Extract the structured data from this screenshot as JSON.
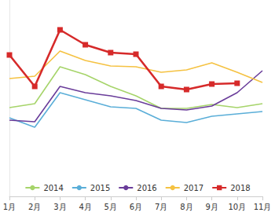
{
  "chart_data": {
    "type": "line",
    "categories": [
      "1月",
      "2月",
      "3月",
      "4月",
      "5月",
      "6月",
      "7月",
      "8月",
      "9月",
      "10月",
      "11月"
    ],
    "series": [
      {
        "name": "2014",
        "color": "#a6d46a",
        "marker": "none",
        "line_style": "solid",
        "values": [
          113,
          118,
          165,
          155,
          140,
          128,
          112,
          112,
          117,
          113,
          118
        ]
      },
      {
        "name": "2015",
        "color": "#5aaed8",
        "marker": "none",
        "line_style": "solid",
        "values": [
          100,
          88,
          132,
          123,
          114,
          112,
          97,
          94,
          102,
          105,
          108
        ]
      },
      {
        "name": "2016",
        "color": "#6a3d9a",
        "marker": "none",
        "line_style": "solid",
        "values": [
          97,
          95,
          140,
          132,
          128,
          122,
          112,
          110,
          115,
          132,
          160
        ]
      },
      {
        "name": "2017",
        "color": "#f5c242",
        "marker": "none",
        "line_style": "solid",
        "values": [
          150,
          153,
          185,
          173,
          166,
          165,
          158,
          161,
          170,
          158,
          145
        ]
      },
      {
        "name": "2018",
        "color": "#d62a2a",
        "marker": "square",
        "line_style": "solid",
        "values": [
          180,
          140,
          212,
          193,
          183,
          181,
          140,
          136,
          143,
          144,
          null
        ]
      }
    ],
    "ylim": [
      0,
      250
    ],
    "grid": false,
    "legend": "bottom",
    "tick_labels": "x"
  }
}
